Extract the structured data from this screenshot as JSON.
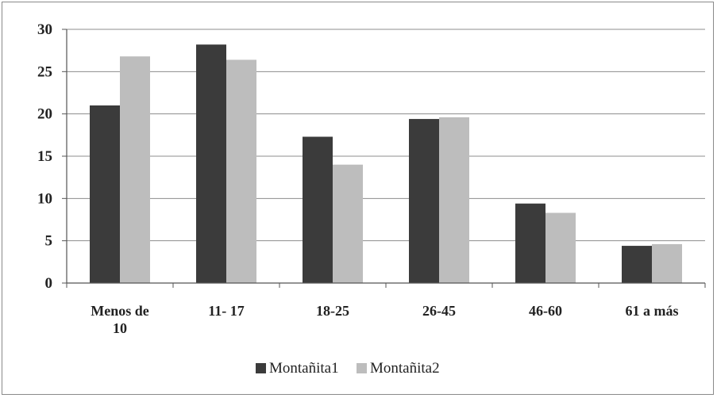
{
  "chart_data": {
    "type": "bar",
    "categories": [
      [
        "Menos de",
        "10"
      ],
      [
        "11- 17"
      ],
      [
        "18-25"
      ],
      [
        "26-45"
      ],
      [
        "46-60"
      ],
      [
        "61 a más"
      ]
    ],
    "series": [
      {
        "name": "Montañita1",
        "color": "#3b3b3b",
        "values": [
          21.0,
          28.2,
          17.3,
          19.4,
          9.4,
          4.4
        ]
      },
      {
        "name": "Montañita2",
        "color": "#bdbdbd",
        "values": [
          26.8,
          26.4,
          14.0,
          19.6,
          8.3,
          4.6
        ]
      }
    ],
    "ylim": [
      0,
      30
    ],
    "yticks": [
      0,
      5,
      10,
      15,
      20,
      25,
      30
    ],
    "grid": true,
    "legend_position": "bottom-center",
    "title": "",
    "xlabel": "",
    "ylabel": ""
  }
}
